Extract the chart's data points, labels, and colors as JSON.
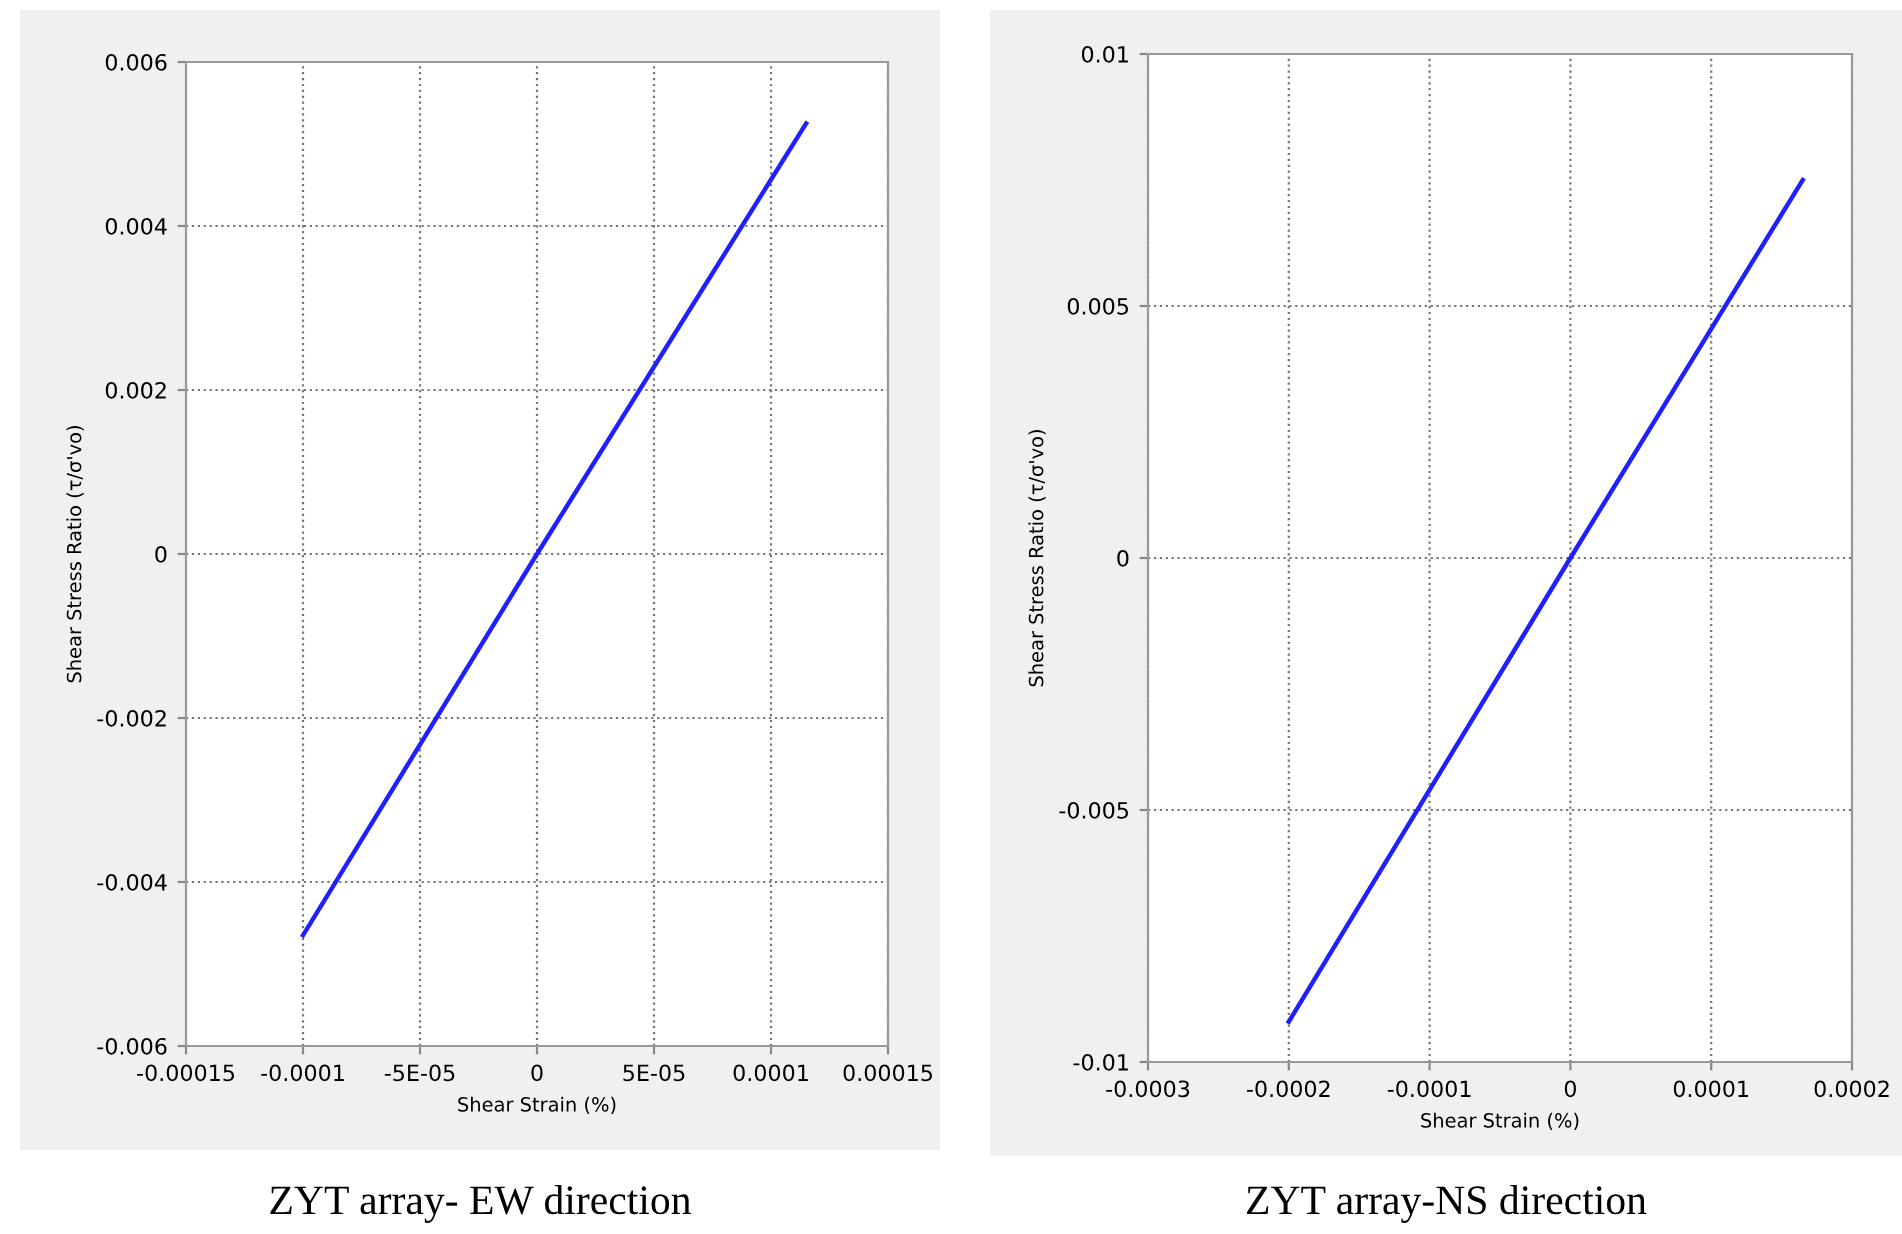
{
  "chart_data": [
    {
      "type": "line",
      "title": "ZYT array- EW direction",
      "xlabel": "Shear Strain (%)",
      "ylabel": "Shear Stress Ratio (τ/σ'vo)",
      "series": [
        {
          "color": "#1f1fff",
          "x": [
            -0.0001,
            0,
            0.000115
          ],
          "values": [
            -0.00465,
            0,
            0.00525
          ]
        }
      ],
      "xlim": [
        -0.00015,
        0.00015
      ],
      "xticks": [
        -0.00015,
        -0.0001,
        {
          "value": -5e-05,
          "label": "-5E-05"
        },
        0,
        {
          "value": 5e-05,
          "label": "5E-05"
        },
        0.0001,
        0.00015
      ],
      "ylim": [
        -0.006,
        0.006
      ],
      "yticks": [
        -0.006,
        -0.004,
        -0.002,
        0,
        0.002,
        0.004,
        0.006
      ],
      "grid": true,
      "line_style": "solid"
    },
    {
      "type": "line",
      "title": "ZYT array-NS direction",
      "xlabel": "Shear Strain (%)",
      "ylabel": "Shear Stress Ratio (τ/σ'vo)",
      "series": [
        {
          "color": "#1f1fff",
          "x": [
            -0.0002,
            0,
            0.000165
          ],
          "values": [
            -0.0092,
            0,
            0.0075
          ]
        }
      ],
      "xlim": [
        -0.0003,
        0.0002
      ],
      "xticks": [
        -0.0003,
        -0.0002,
        -0.0001,
        0,
        0.0001,
        0.0002
      ],
      "ylim": [
        -0.01,
        0.01
      ],
      "yticks": [
        -0.01,
        -0.005,
        0,
        0.005,
        0.01
      ],
      "grid": true,
      "line_style": "solid"
    }
  ]
}
